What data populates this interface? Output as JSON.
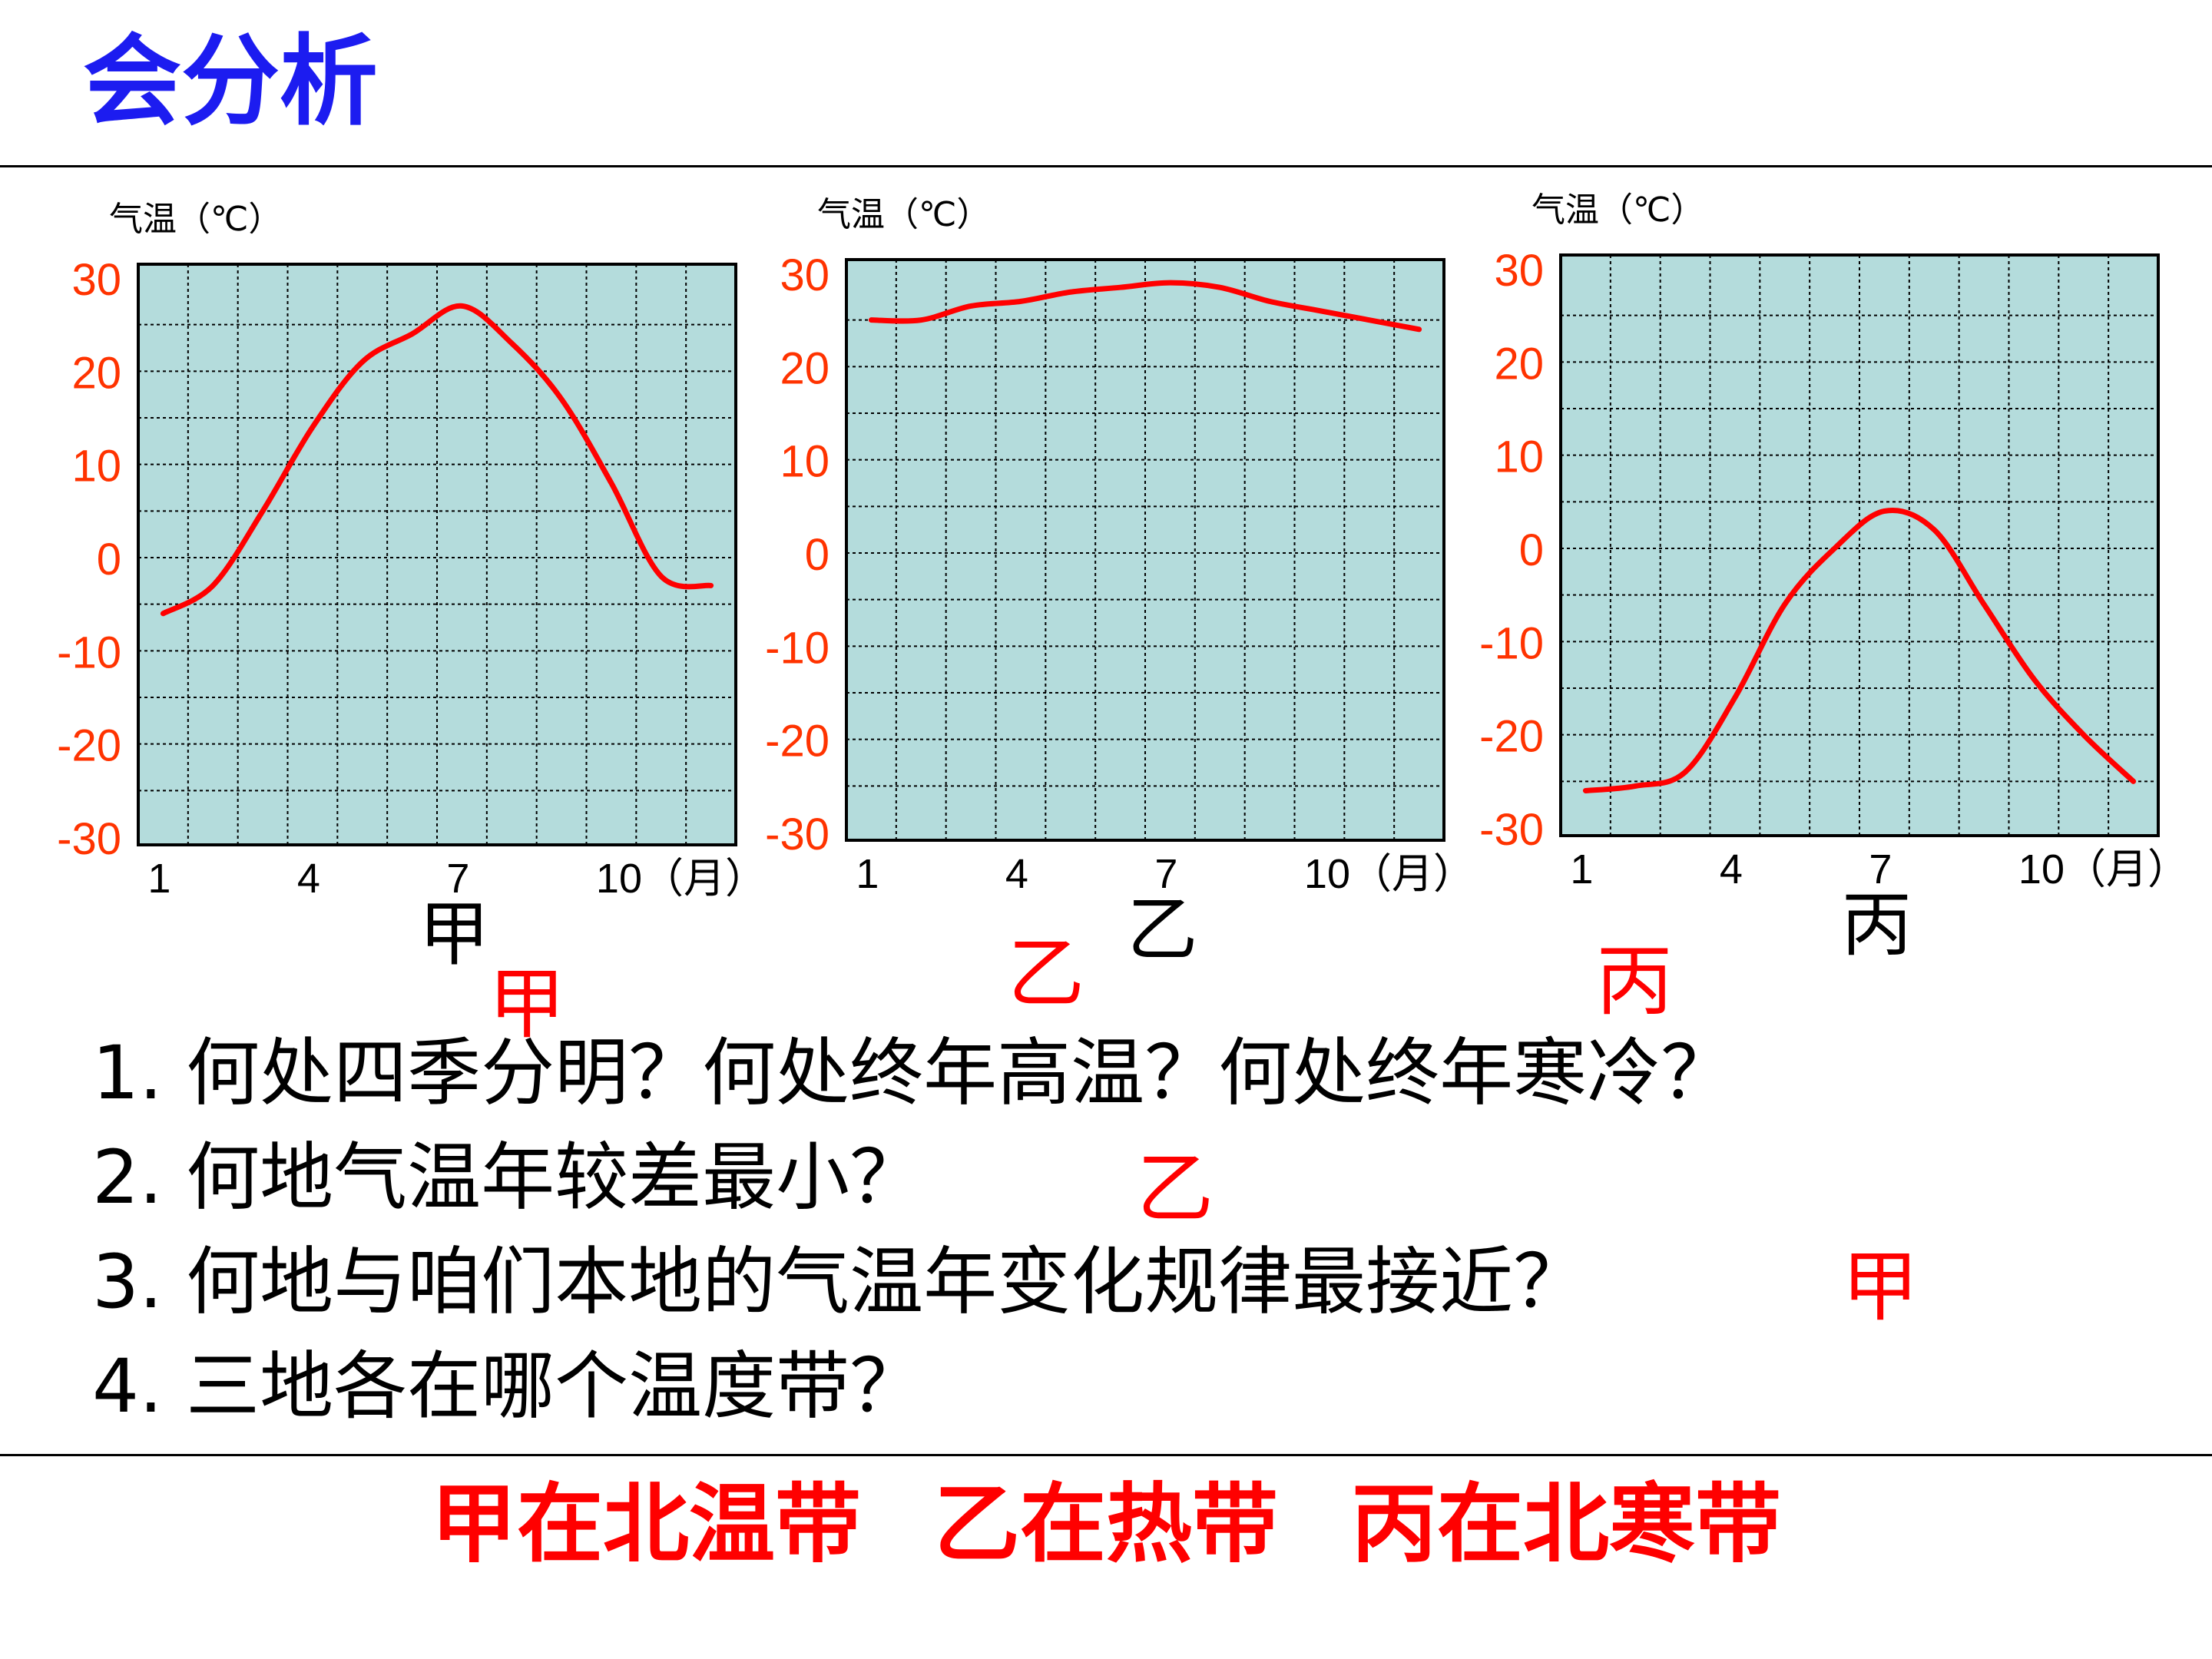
{
  "title": "会分析",
  "colors": {
    "title": "#1c1cf0",
    "plot_bg": "#b4dcdc",
    "curve": "#ff0000",
    "tick_label": "#ff3300",
    "answer": "#ff0000"
  },
  "chart_data": [
    {
      "type": "line",
      "ylabel": "气温（℃）",
      "name": "甲",
      "x_ticks": [
        "1",
        "4",
        "7",
        "10（月）"
      ],
      "y_ticks": [
        "30",
        "20",
        "10",
        "0",
        "-10",
        "-20",
        "-30"
      ],
      "ylim": [
        -30,
        30
      ],
      "x": [
        1,
        2,
        3,
        4,
        5,
        6,
        7,
        8,
        9,
        10,
        11,
        12
      ],
      "values": [
        -6,
        -3,
        5,
        14,
        21,
        24,
        27,
        23,
        17,
        8,
        -2,
        -3
      ],
      "grid": true
    },
    {
      "type": "line",
      "ylabel": "气温（℃）",
      "name": "乙",
      "x_ticks": [
        "1",
        "4",
        "7",
        "10（月）"
      ],
      "y_ticks": [
        "30",
        "20",
        "10",
        "0",
        "-10",
        "-20",
        "-30"
      ],
      "ylim": [
        -30,
        30
      ],
      "x": [
        1,
        2,
        3,
        4,
        5,
        6,
        7,
        8,
        9,
        10,
        11,
        12
      ],
      "values": [
        25,
        25,
        26.5,
        27,
        28,
        28.5,
        29,
        28.5,
        27,
        26,
        25,
        24
      ],
      "grid": true
    },
    {
      "type": "line",
      "ylabel": "气温（℃）",
      "name": "丙",
      "x_ticks": [
        "1",
        "4",
        "7",
        "10（月）"
      ],
      "y_ticks": [
        "30",
        "20",
        "10",
        "0",
        "-10",
        "-20",
        "-30"
      ],
      "ylim": [
        -30,
        30
      ],
      "x": [
        1,
        2,
        3,
        4,
        5,
        6,
        7,
        8,
        9,
        10,
        11,
        12
      ],
      "values": [
        -26,
        -25.5,
        -24,
        -16,
        -6,
        0,
        4,
        2,
        -6,
        -14,
        -20,
        -25
      ],
      "grid": true
    }
  ],
  "questions": [
    "1. 何处四季分明？何处终年高温？何处终年寒冷？",
    "2. 何地气温年较差最小？",
    "3. 何地与咱们本地的气温年变化规律最接近？",
    "4. 三地各在哪个温度带？"
  ],
  "answers": {
    "q1": [
      "甲",
      "乙",
      "丙"
    ],
    "q2": "乙",
    "q3": "甲"
  },
  "summary": [
    "甲在北温带",
    "乙在热带",
    "丙在北寒带"
  ]
}
